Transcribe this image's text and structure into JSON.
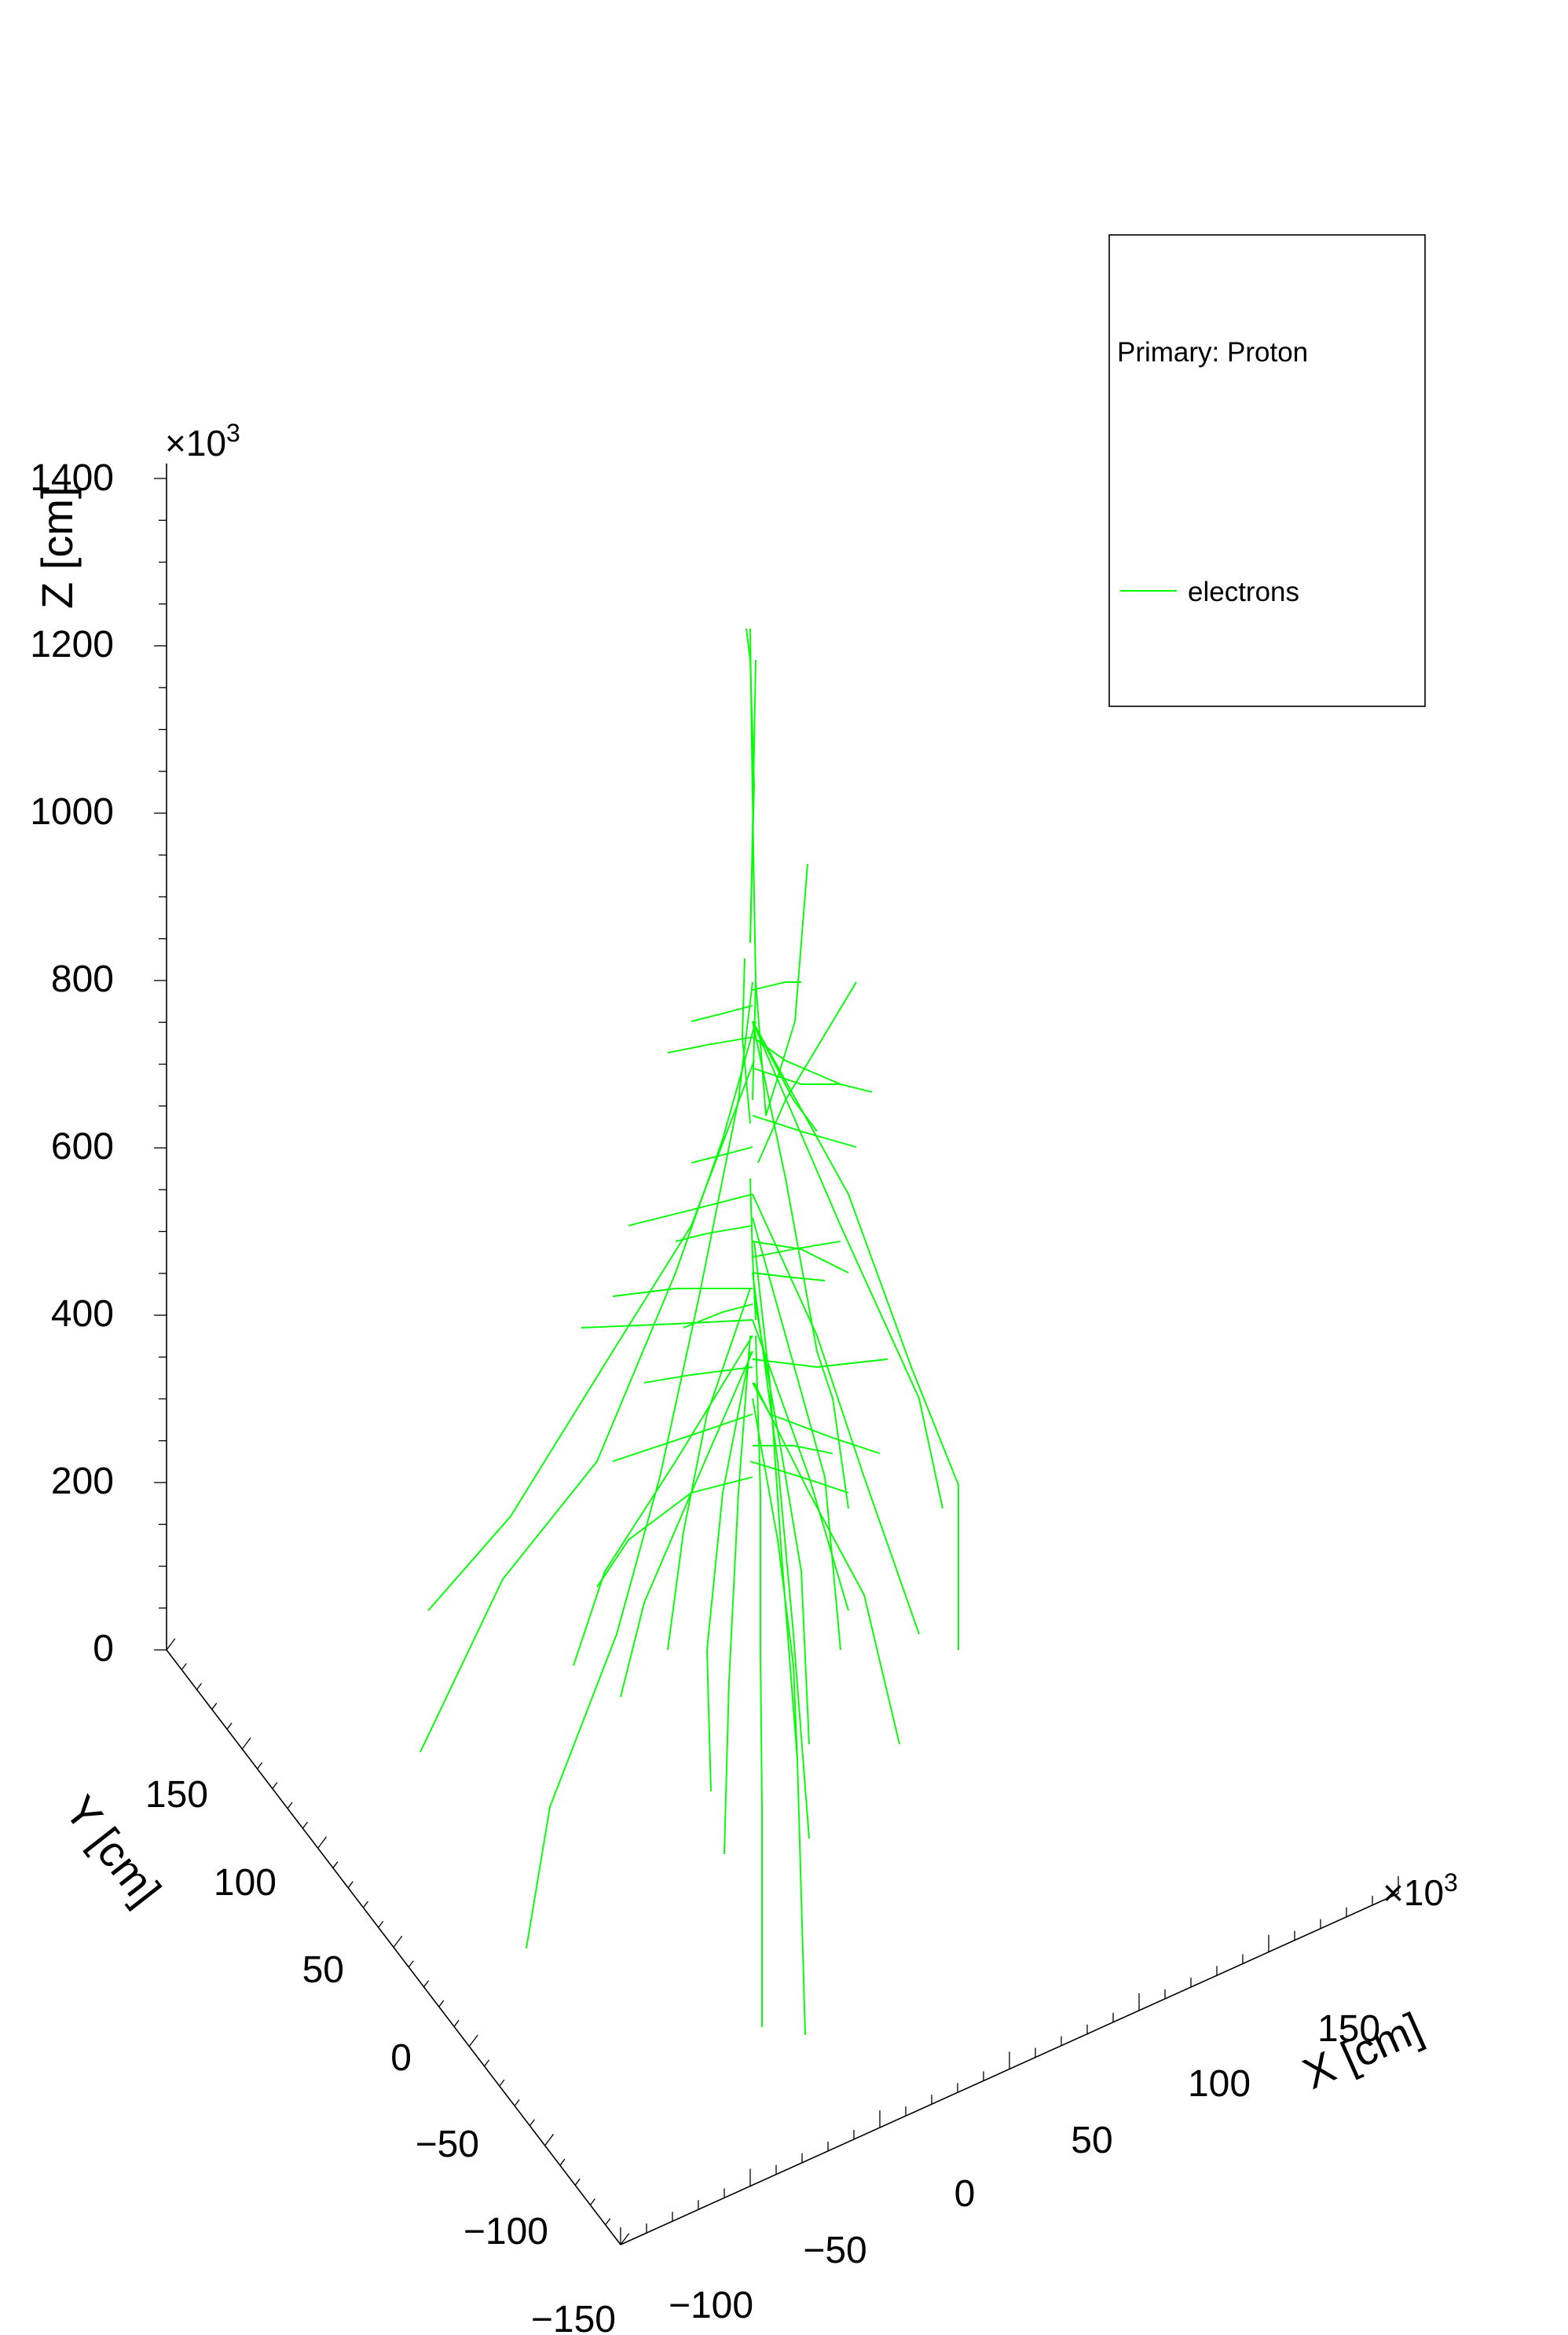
{
  "chart_data": {
    "type": "3d-trajectory",
    "title": "",
    "zlabel": "Z [cm]",
    "ylabel": "Y [cm]",
    "xlabel": "X [cm]",
    "z_exponent_text": "×10",
    "z_exponent_power": "3",
    "x_exponent_text": "×10",
    "x_exponent_power": "3",
    "z_ticks": [
      "0",
      "200",
      "400",
      "600",
      "800",
      "1000",
      "1200",
      "1400"
    ],
    "y_ticks": [
      "150",
      "100",
      "50",
      "0",
      "−50",
      "−100",
      "−150"
    ],
    "x_ticks": [
      "−100",
      "−50",
      "0",
      "50",
      "100",
      "150"
    ],
    "zlim": [
      0,
      1400
    ],
    "ylim": [
      -150,
      150
    ],
    "xlim": [
      -100,
      150
    ],
    "legend": {
      "title": "Primary: Proton",
      "entries": [
        {
          "name": "electrons",
          "color": "#00ff00"
        }
      ]
    },
    "series": [
      {
        "name": "electrons",
        "color": "#00ff00",
        "tracks": [
          [
            [
              950,
              800
            ],
            [
              955,
              840
            ],
            [
              960,
              1000
            ],
            [
              955,
              1200
            ]
          ],
          [
            [
              955,
              1200
            ],
            [
              958,
              1060
            ],
            [
              962,
              840
            ]
          ],
          [
            [
              955,
              800
            ],
            [
              957,
              950
            ],
            [
              960,
              1140
            ],
            [
              962,
              1250
            ],
            [
              958,
              1400
            ]
          ],
          [
            [
              962,
              1250
            ],
            [
              975,
              1420
            ],
            [
              1012,
              1300
            ],
            [
              1028,
              1100
            ]
          ],
          [
            [
              955,
              1430
            ],
            [
              945,
              1320
            ],
            [
              948,
              1220
            ]
          ],
          [
            [
              955,
              1500
            ],
            [
              958,
              1600
            ],
            [
              962,
              1680
            ]
          ],
          [
            [
              965,
              1480
            ],
            [
              1000,
              1400
            ],
            [
              1060,
              1300
            ],
            [
              1090,
              1250
            ]
          ],
          [
            [
              958,
              1300
            ],
            [
              1000,
              1500
            ],
            [
              1040,
              1720
            ],
            [
              1060,
              1780
            ],
            [
              1080,
              1920
            ]
          ],
          [
            [
              958,
              1300
            ],
            [
              1070,
              1560
            ],
            [
              1170,
              1780
            ],
            [
              1200,
              1920
            ]
          ],
          [
            [
              958,
              1300
            ],
            [
              1080,
              1520
            ],
            [
              1160,
              1740
            ],
            [
              1220,
              1890
            ],
            [
              1220,
              2100
            ]
          ],
          [
            [
              958,
              1250
            ],
            [
              940,
              1400
            ],
            [
              890,
              1650
            ],
            [
              840,
              1880
            ],
            [
              785,
              2080
            ],
            [
              700,
              2300
            ],
            [
              670,
              2480
            ]
          ],
          [
            [
              962,
              1300
            ],
            [
              920,
              1450
            ],
            [
              860,
              1620
            ],
            [
              760,
              1860
            ],
            [
              640,
              2010
            ],
            [
              535,
              2230
            ]
          ],
          [
            [
              960,
              1350
            ],
            [
              880,
              1560
            ],
            [
              780,
              1720
            ],
            [
              650,
              1930
            ],
            [
              545,
              2050
            ]
          ],
          [
            [
              955,
              1700
            ],
            [
              940,
              1900
            ],
            [
              928,
              2140
            ],
            [
              922,
              2360
            ]
          ],
          [
            [
              958,
              1620
            ],
            [
              990,
              1860
            ],
            [
              1010,
              2080
            ],
            [
              1030,
              2340
            ]
          ],
          [
            [
              960,
              1580
            ],
            [
              980,
              1760
            ],
            [
              995,
              1980
            ],
            [
              1015,
              2240
            ],
            [
              1025,
              2590
            ]
          ],
          [
            [
              962,
              1700
            ],
            [
              968,
              1900
            ],
            [
              968,
              2100
            ],
            [
              970,
              2300
            ],
            [
              970,
              2580
            ]
          ],
          [
            [
              958,
              1520
            ],
            [
              1040,
              1700
            ],
            [
              1100,
              1880
            ],
            [
              1170,
              2080
            ]
          ],
          [
            [
              958,
              1680
            ],
            [
              1030,
              1880
            ],
            [
              1080,
              2050
            ]
          ],
          [
            [
              955,
              1640
            ],
            [
              900,
              1800
            ],
            [
              870,
              1950
            ],
            [
              850,
              2100
            ]
          ],
          [
            [
              958,
              1720
            ],
            [
              880,
              1900
            ],
            [
              820,
              2040
            ],
            [
              790,
              2160
            ]
          ],
          [
            [
              958,
              1550
            ],
            [
              1000,
              1700
            ],
            [
              1050,
              1880
            ],
            [
              1070,
              2100
            ]
          ],
          [
            [
              960,
              1650
            ],
            [
              995,
              1850
            ],
            [
              1020,
              2000
            ],
            [
              1030,
              2220
            ]
          ],
          [
            [
              958,
              1780
            ],
            [
              990,
              1960
            ],
            [
              1010,
              2120
            ],
            [
              1015,
              2240
            ]
          ],
          [
            [
              955,
              1720
            ],
            [
              920,
              1900
            ],
            [
              900,
              2100
            ],
            [
              905,
              2280
            ]
          ],
          [
            [
              960,
              1760
            ],
            [
              1030,
              1900
            ],
            [
              1100,
              2030
            ],
            [
              1145,
              2220
            ]
          ],
          [
            [
              958,
              1700
            ],
            [
              860,
              1860
            ],
            [
              770,
              2000
            ],
            [
              730,
              2120
            ]
          ],
          [
            [
              958,
              1760
            ],
            [
              980,
              1800
            ],
            [
              1060,
              1830
            ],
            [
              1120,
              1850
            ]
          ],
          [
            [
              958,
              1800
            ],
            [
              900,
              1820
            ],
            [
              840,
              1840
            ],
            [
              780,
              1860
            ]
          ],
          [
            [
              955,
              1860
            ],
            [
              1020,
              1880
            ],
            [
              1080,
              1900
            ]
          ],
          [
            [
              958,
              1300
            ],
            [
              1010,
              1400
            ],
            [
              1040,
              1440
            ]
          ],
          [
            [
              958,
              1320
            ],
            [
              900,
              1330
            ],
            [
              850,
              1340
            ]
          ],
          [
            [
              960,
              1360
            ],
            [
              1020,
              1380
            ],
            [
              1070,
              1380
            ],
            [
              1110,
              1390
            ]
          ],
          [
            [
              958,
              1420
            ],
            [
              1020,
              1440
            ],
            [
              1090,
              1460
            ]
          ],
          [
            [
              958,
              1460
            ],
            [
              920,
              1470
            ],
            [
              880,
              1480
            ]
          ],
          [
            [
              958,
              1520
            ],
            [
              880,
              1540
            ],
            [
              800,
              1560
            ]
          ],
          [
            [
              958,
              1580
            ],
            [
              1020,
              1590
            ],
            [
              1080,
              1620
            ]
          ],
          [
            [
              958,
              1640
            ],
            [
              860,
              1640
            ],
            [
              780,
              1650
            ]
          ],
          [
            [
              958,
              1680
            ],
            [
              860,
              1685
            ],
            [
              740,
              1690
            ]
          ],
          [
            [
              958,
              1730
            ],
            [
              1040,
              1740
            ],
            [
              1130,
              1730
            ]
          ],
          [
            [
              958,
              1740
            ],
            [
              880,
              1750
            ],
            [
              820,
              1760
            ]
          ],
          [
            [
              958,
              1260
            ],
            [
              1000,
              1250
            ],
            [
              1020,
              1250
            ]
          ],
          [
            [
              958,
              1280
            ],
            [
              920,
              1290
            ],
            [
              880,
              1300
            ]
          ],
          [
            [
              958,
              1600
            ],
            [
              1010,
              1590
            ],
            [
              1070,
              1580
            ]
          ],
          [
            [
              958,
              1560
            ],
            [
              900,
              1570
            ],
            [
              860,
              1580
            ]
          ],
          [
            [
              958,
              1840
            ],
            [
              1010,
              1840
            ],
            [
              1060,
              1850
            ]
          ],
          [
            [
              958,
              1880
            ],
            [
              880,
              1900
            ],
            [
              800,
              1960
            ],
            [
              760,
              2020
            ]
          ],
          [
            [
              958,
              1620
            ],
            [
              1000,
              1625
            ],
            [
              1050,
              1630
            ]
          ],
          [
            [
              958,
              1660
            ],
            [
              920,
              1670
            ],
            [
              870,
              1690
            ]
          ],
          [
            [
              958,
              1320
            ],
            [
              1000,
              1350
            ],
            [
              1070,
              1380
            ]
          ]
        ]
      }
    ]
  }
}
